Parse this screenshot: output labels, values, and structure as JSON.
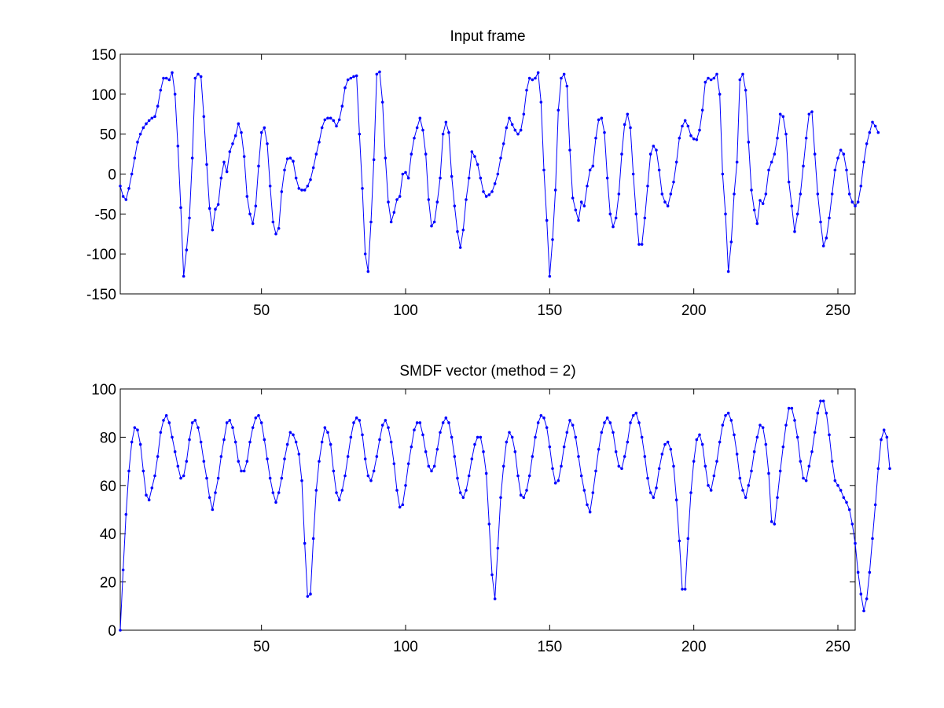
{
  "chart_data": [
    {
      "type": "line",
      "title": "Input frame",
      "xlabel": "",
      "ylabel": "",
      "xlim": [
        1,
        256
      ],
      "ylim": [
        -150,
        150
      ],
      "xticks": [
        50,
        100,
        150,
        200,
        250
      ],
      "yticks": [
        -150,
        -100,
        -50,
        0,
        50,
        100,
        150
      ],
      "grid": false,
      "marker": "dot",
      "color": "#0000ff",
      "series": [
        {
          "values": [
            -15,
            -28,
            -32,
            -18,
            0,
            20,
            40,
            50,
            58,
            63,
            67,
            70,
            72,
            85,
            105,
            120,
            120,
            118,
            127,
            100,
            35,
            -42,
            -128,
            -95,
            -55,
            20,
            120,
            125,
            122,
            72,
            12,
            -43,
            -70,
            -44,
            -38,
            -5,
            15,
            3,
            28,
            38,
            48,
            63,
            52,
            22,
            -28,
            -50,
            -62,
            -40,
            10,
            52,
            58,
            38,
            -15,
            -60,
            -75,
            -68,
            -22,
            5,
            19,
            20,
            16,
            -5,
            -18,
            -20,
            -20,
            -15,
            -7,
            8,
            25,
            40,
            58,
            68,
            70,
            70,
            67,
            60,
            68,
            85,
            108,
            118,
            120,
            122,
            123,
            50,
            -18,
            -100,
            -122,
            -60,
            18,
            125,
            128,
            90,
            20,
            -35,
            -60,
            -48,
            -32,
            -28,
            0,
            2,
            -5,
            25,
            45,
            58,
            70,
            55,
            25,
            -32,
            -65,
            -60,
            -35,
            -5,
            50,
            65,
            52,
            -3,
            -40,
            -72,
            -92,
            -70,
            -32,
            -5,
            28,
            22,
            12,
            -5,
            -22,
            -28,
            -26,
            -22,
            -12,
            0,
            20,
            38,
            58,
            70,
            62,
            55,
            50,
            55,
            75,
            105,
            120,
            118,
            120,
            127,
            90,
            5,
            -58,
            -128,
            -82,
            -20,
            80,
            120,
            125,
            110,
            30,
            -30,
            -45,
            -58,
            -35,
            -40,
            -15,
            5,
            10,
            45,
            68,
            70,
            52,
            -5,
            -50,
            -66,
            -55,
            -25,
            25,
            62,
            75,
            58,
            0,
            -50,
            -88,
            -88,
            -55,
            -15,
            25,
            35,
            30,
            5,
            -25,
            -35,
            -40,
            -25,
            -10,
            15,
            45,
            60,
            67,
            60,
            48,
            44,
            43,
            55,
            80,
            115,
            120,
            118,
            120,
            125,
            100,
            0,
            -50,
            -122,
            -85,
            -25,
            15,
            118,
            125,
            105,
            40,
            -20,
            -45,
            -62,
            -33,
            -37,
            -25,
            5,
            15,
            25,
            45,
            75,
            72,
            50,
            -10,
            -40,
            -72,
            -50,
            -25,
            10,
            45,
            75,
            78,
            25,
            -25,
            -60,
            -90,
            -80,
            -55,
            -25,
            5,
            20,
            30,
            25,
            5,
            -25,
            -35,
            -40,
            -35,
            -15,
            15,
            38,
            52,
            65,
            60,
            52
          ]
        }
      ]
    },
    {
      "type": "line",
      "title": "SMDF vector (method = 2)",
      "xlabel": "",
      "ylabel": "",
      "xlim": [
        1,
        256
      ],
      "ylim": [
        0,
        100
      ],
      "xticks": [
        50,
        100,
        150,
        200,
        250
      ],
      "yticks": [
        0,
        20,
        40,
        60,
        80,
        100
      ],
      "grid": false,
      "marker": "dot",
      "color": "#0000ff",
      "series": [
        {
          "values": [
            0,
            25,
            48,
            66,
            78,
            84,
            83,
            77,
            66,
            56,
            54,
            59,
            64,
            72,
            82,
            87,
            89,
            86,
            80,
            74,
            68,
            63,
            64,
            70,
            79,
            86,
            87,
            84,
            78,
            70,
            63,
            55,
            50,
            57,
            63,
            72,
            79,
            86,
            87,
            84,
            78,
            70,
            66,
            66,
            70,
            78,
            84,
            88,
            89,
            86,
            79,
            71,
            63,
            57,
            53,
            57,
            63,
            71,
            77,
            82,
            81,
            78,
            73,
            62,
            36,
            14,
            15,
            38,
            58,
            70,
            78,
            84,
            82,
            77,
            66,
            57,
            54,
            58,
            64,
            72,
            80,
            86,
            88,
            87,
            81,
            71,
            64,
            62,
            66,
            72,
            79,
            85,
            87,
            84,
            78,
            69,
            58,
            51,
            52,
            60,
            69,
            76,
            83,
            86,
            86,
            81,
            74,
            68,
            66,
            68,
            75,
            82,
            86,
            88,
            86,
            80,
            72,
            63,
            57,
            55,
            58,
            64,
            71,
            77,
            80,
            80,
            74,
            65,
            44,
            23,
            13,
            34,
            55,
            68,
            78,
            82,
            80,
            74,
            64,
            56,
            55,
            58,
            64,
            72,
            80,
            86,
            89,
            88,
            84,
            76,
            67,
            61,
            62,
            68,
            76,
            82,
            87,
            85,
            80,
            72,
            64,
            58,
            52,
            49,
            57,
            66,
            75,
            82,
            86,
            88,
            86,
            82,
            74,
            68,
            67,
            72,
            78,
            86,
            89,
            90,
            86,
            80,
            72,
            63,
            57,
            55,
            59,
            67,
            73,
            77,
            78,
            75,
            68,
            54,
            37,
            17,
            17,
            38,
            57,
            70,
            79,
            81,
            77,
            68,
            60,
            58,
            64,
            70,
            78,
            85,
            89,
            90,
            87,
            81,
            73,
            63,
            58,
            55,
            60,
            66,
            74,
            80,
            85,
            84,
            77,
            65,
            45,
            44,
            55,
            66,
            76,
            85,
            92,
            92,
            87,
            80,
            70,
            63,
            62,
            68,
            74,
            82,
            90,
            95,
            95,
            90,
            81,
            70,
            62,
            60,
            58,
            55,
            53,
            50,
            44,
            36,
            24,
            15,
            8,
            13,
            24,
            38,
            52,
            67,
            79,
            83,
            80,
            67
          ]
        }
      ]
    }
  ]
}
